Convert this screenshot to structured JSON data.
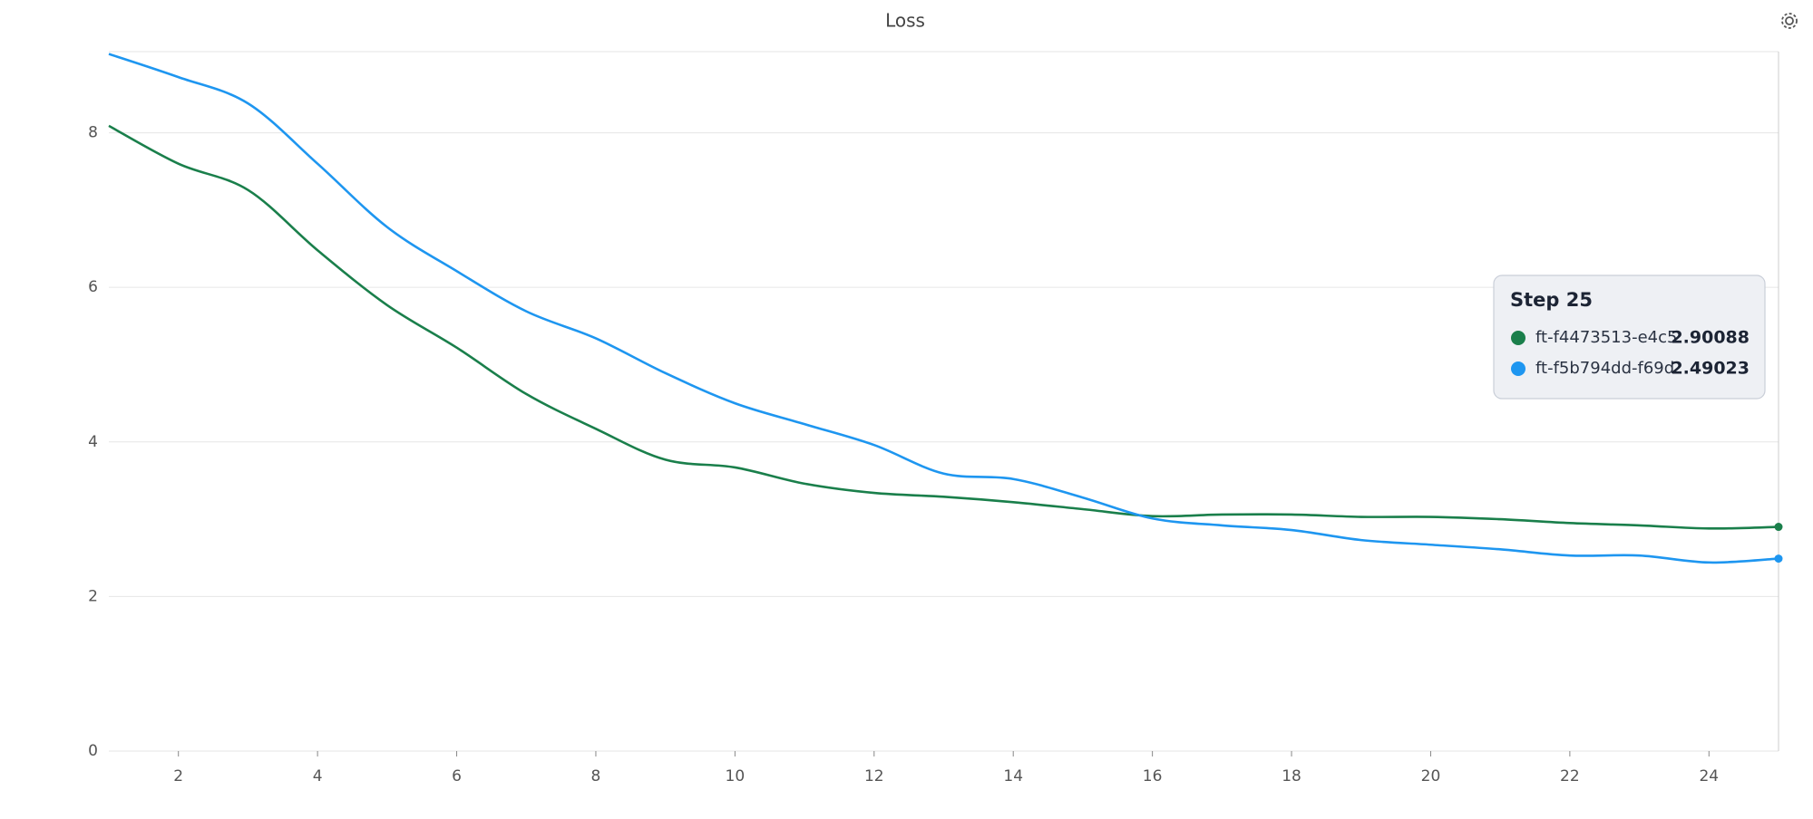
{
  "chart_data": {
    "type": "line",
    "title": "Loss",
    "x": [
      1,
      2,
      3,
      4,
      5,
      6,
      7,
      8,
      9,
      10,
      11,
      12,
      13,
      14,
      15,
      16,
      17,
      18,
      19,
      20,
      21,
      22,
      23,
      24,
      25
    ],
    "series": [
      {
        "name": "ft-f4473513-e4c5",
        "color": "#1a7f4b",
        "values": [
          8.09,
          7.6,
          7.26,
          6.48,
          5.77,
          5.22,
          4.62,
          4.17,
          3.77,
          3.67,
          3.46,
          3.34,
          3.29,
          3.22,
          3.13,
          3.04,
          3.06,
          3.06,
          3.03,
          3.03,
          3.0,
          2.95,
          2.92,
          2.88,
          2.90088
        ]
      },
      {
        "name": "ft-f5b794dd-f69d",
        "color": "#1e96f0",
        "values": [
          9.02,
          8.72,
          8.38,
          7.6,
          6.78,
          6.21,
          5.69,
          5.34,
          4.89,
          4.5,
          4.23,
          3.96,
          3.59,
          3.52,
          3.28,
          3.01,
          2.92,
          2.86,
          2.73,
          2.67,
          2.61,
          2.53,
          2.53,
          2.44,
          2.49023
        ]
      }
    ],
    "xlim": [
      1,
      25
    ],
    "xticks": [
      2,
      4,
      6,
      8,
      10,
      12,
      14,
      16,
      18,
      20,
      22,
      24
    ],
    "ylim": [
      0,
      9.05
    ],
    "yticks": [
      0,
      2,
      4,
      6,
      8
    ],
    "grid": true,
    "tooltip_title": "Step 25"
  }
}
